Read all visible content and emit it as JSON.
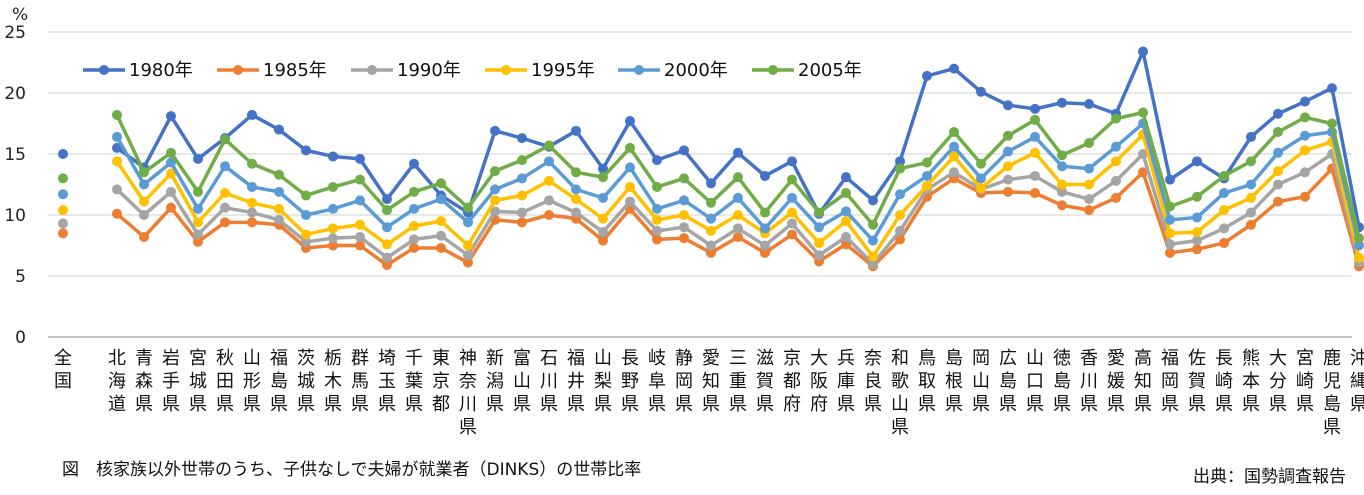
{
  "chart_data": {
    "type": "line",
    "ylabel": "%",
    "ylim": [
      0,
      25
    ],
    "yticks": [
      "0",
      "5",
      "10",
      "15",
      "20",
      "25"
    ],
    "grid": true,
    "legend_position": "top-left",
    "categories": [
      "全国",
      "北海道",
      "青森県",
      "岩手県",
      "宮城県",
      "秋田県",
      "山形県",
      "福島県",
      "茨城県",
      "栃木県",
      "群馬県",
      "埼玉県",
      "千葉県",
      "東京都",
      "神奈川県",
      "新潟県",
      "富山県",
      "石川県",
      "福井県",
      "山梨県",
      "長野県",
      "岐阜県",
      "静岡県",
      "愛知県",
      "三重県",
      "滋賀県",
      "京都府",
      "大阪府",
      "兵庫県",
      "奈良県",
      "和歌山県",
      "鳥取県",
      "島根県",
      "岡山県",
      "広島県",
      "山口県",
      "徳島県",
      "香川県",
      "愛媛県",
      "高知県",
      "福岡県",
      "佐賀県",
      "長崎県",
      "熊本県",
      "大分県",
      "宮崎県",
      "鹿児島県",
      "沖縄県"
    ],
    "series": [
      {
        "name": "1980年",
        "color": "#4472C4",
        "values": [
          15.0,
          15.5,
          13.9,
          18.1,
          14.6,
          16.3,
          18.2,
          17.0,
          15.3,
          14.8,
          14.6,
          11.3,
          14.2,
          11.6,
          10.2,
          16.9,
          16.3,
          15.6,
          16.9,
          13.8,
          17.7,
          14.5,
          15.3,
          12.6,
          15.1,
          13.2,
          14.4,
          10.1,
          13.1,
          11.2,
          14.4,
          21.4,
          22.0,
          20.1,
          19.0,
          18.7,
          19.2,
          19.1,
          18.3,
          23.4,
          12.9,
          14.4,
          13.0,
          16.4,
          18.3,
          19.3,
          20.4,
          9.0
        ]
      },
      {
        "name": "1985年",
        "color": "#ED7D31",
        "values": [
          8.5,
          10.1,
          8.2,
          10.6,
          7.8,
          9.4,
          9.4,
          9.2,
          7.3,
          7.5,
          7.5,
          5.9,
          7.3,
          7.3,
          6.1,
          9.6,
          9.4,
          10.0,
          9.7,
          7.9,
          10.5,
          8.0,
          8.1,
          6.9,
          8.2,
          6.9,
          8.4,
          6.2,
          7.6,
          5.8,
          8.0,
          11.5,
          13.0,
          11.8,
          11.9,
          11.8,
          10.8,
          10.4,
          11.4,
          13.5,
          6.9,
          7.2,
          7.7,
          9.2,
          11.1,
          11.5,
          13.8,
          5.8
        ]
      },
      {
        "name": "1990年",
        "color": "#A5A5A5",
        "values": [
          9.3,
          12.1,
          10.0,
          11.9,
          8.4,
          10.6,
          10.2,
          9.6,
          7.8,
          8.1,
          8.2,
          6.5,
          8.0,
          8.3,
          6.7,
          10.3,
          10.2,
          11.2,
          10.2,
          8.6,
          11.1,
          8.7,
          9.0,
          7.5,
          8.9,
          7.5,
          9.3,
          6.7,
          8.2,
          6.0,
          8.7,
          12.1,
          13.5,
          12.1,
          12.9,
          13.2,
          11.9,
          11.3,
          12.8,
          15.0,
          7.6,
          7.9,
          8.9,
          10.2,
          12.5,
          13.5,
          15.0,
          6.1
        ]
      },
      {
        "name": "1995年",
        "color": "#FFC000",
        "values": [
          10.4,
          14.4,
          11.1,
          13.4,
          9.4,
          11.8,
          11.0,
          10.5,
          8.4,
          8.9,
          9.2,
          7.6,
          9.1,
          9.5,
          7.5,
          11.2,
          11.6,
          12.8,
          11.3,
          9.7,
          12.3,
          9.6,
          10.0,
          8.7,
          10.0,
          8.5,
          10.2,
          7.7,
          9.5,
          6.6,
          10.0,
          12.4,
          14.8,
          12.2,
          14.0,
          15.1,
          12.5,
          12.5,
          14.4,
          16.6,
          8.5,
          8.6,
          10.4,
          11.4,
          13.6,
          15.3,
          16.0,
          6.5
        ]
      },
      {
        "name": "2000年",
        "color": "#5B9BD5",
        "values": [
          11.7,
          16.4,
          12.5,
          14.3,
          10.5,
          14.0,
          12.3,
          11.9,
          10.0,
          10.5,
          11.2,
          9.0,
          10.5,
          11.3,
          9.4,
          12.1,
          13.0,
          14.4,
          12.1,
          11.4,
          13.9,
          10.5,
          11.2,
          9.7,
          11.4,
          8.9,
          11.4,
          9.0,
          10.3,
          7.9,
          11.7,
          13.2,
          15.6,
          13.0,
          15.2,
          16.4,
          14.0,
          13.8,
          15.6,
          17.5,
          9.6,
          9.8,
          11.8,
          12.5,
          15.1,
          16.5,
          16.8,
          7.5
        ]
      },
      {
        "name": "2005年",
        "color": "#70AD47",
        "values": [
          13.0,
          18.2,
          13.5,
          15.1,
          11.9,
          16.2,
          14.2,
          13.3,
          11.6,
          12.3,
          12.9,
          10.4,
          11.9,
          12.6,
          10.6,
          13.6,
          14.5,
          15.7,
          13.5,
          13.1,
          15.5,
          12.3,
          13.0,
          11.0,
          13.1,
          10.2,
          12.9,
          10.2,
          11.8,
          9.2,
          13.8,
          14.3,
          16.8,
          14.2,
          16.5,
          17.8,
          14.9,
          15.9,
          17.9,
          18.4,
          10.7,
          11.5,
          13.2,
          14.4,
          16.8,
          18.0,
          17.5,
          8.1
        ]
      }
    ]
  },
  "caption": "図　核家族以外世帯のうち、子供なしで夫婦が就業者（DINKS）の世帯比率",
  "source": "出典：国勢調査報告"
}
